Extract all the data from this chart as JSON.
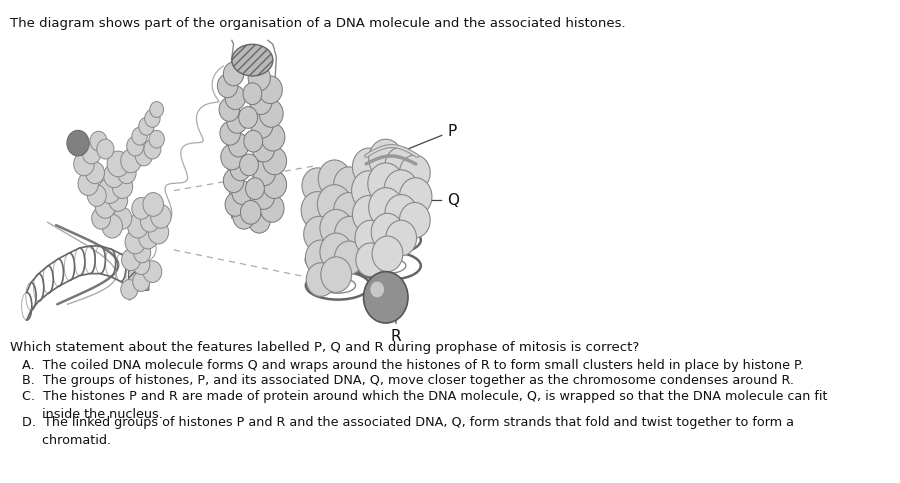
{
  "title_text": "The diagram shows part of the organisation of a DNA molecule and the associated histones.",
  "question_text": "Which statement about the features labelled P, Q and R during prophase of mitosis is correct?",
  "opt_A": "A.  The coiled DNA molecule forms Q and wraps around the histones of R to form small clusters held in place by histone P.",
  "opt_B": "B.  The groups of histones, P, and its associated DNA, Q, move closer together as the chromosome condenses around R.",
  "opt_C": "C.  The histones P and R are made of protein around which the DNA molecule, Q, is wrapped so that the DNA molecule can fit\n     inside the nucleus.",
  "opt_D": "D.  The linked groups of histones P and R and the associated DNA, Q, form strands that fold and twist together to form a\n     chromatid.",
  "bg_color": "#ffffff",
  "text_color": "#111111",
  "label_P": "P",
  "label_Q": "Q",
  "label_R": "R",
  "title_fontsize": 9.5,
  "question_fontsize": 9.5,
  "option_fontsize": 9.2
}
